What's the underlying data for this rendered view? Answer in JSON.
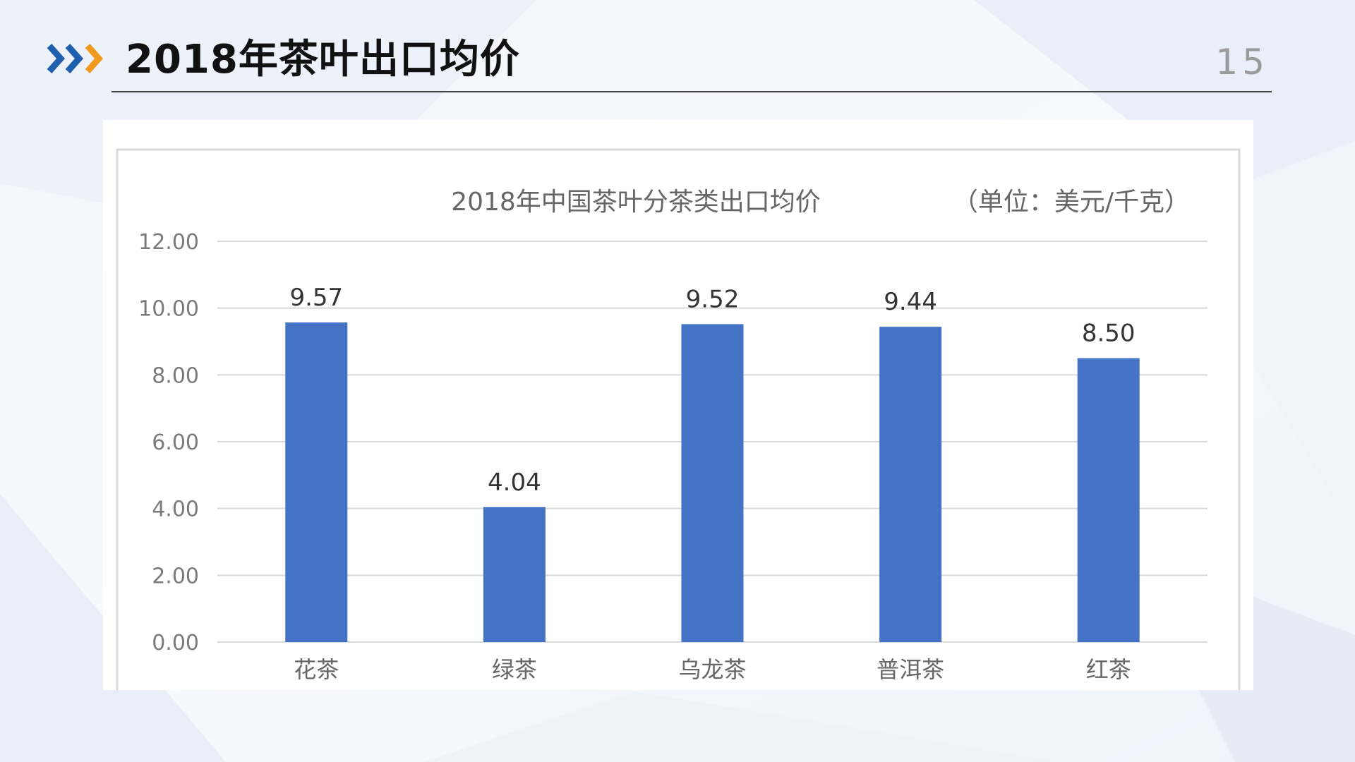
{
  "slide": {
    "title": "2018年茶叶出口均价",
    "page_number": "15"
  },
  "colors": {
    "chevron_blue": "#1f5fae",
    "chevron_orange": "#f29a1f",
    "bar": "#4472c4",
    "grid": "#d9d9d9"
  },
  "chart_data": {
    "type": "bar",
    "title": "2018年中国茶叶分茶类出口均价",
    "unit_label": "（单位：美元/千克）",
    "categories": [
      "花茶",
      "绿茶",
      "乌龙茶",
      "普洱茶",
      "红茶"
    ],
    "values": [
      9.57,
      4.04,
      9.52,
      9.44,
      8.5
    ],
    "data_labels": [
      "9.57",
      "4.04",
      "9.52",
      "9.44",
      "8.50"
    ],
    "ylim": [
      0,
      12
    ],
    "y_ticks": [
      0,
      2,
      4,
      6,
      8,
      10,
      12
    ],
    "y_tick_labels": [
      "0.00",
      "2.00",
      "4.00",
      "6.00",
      "8.00",
      "10.00",
      "12.00"
    ],
    "grid": true,
    "legend": "none",
    "xlabel": "",
    "ylabel": ""
  }
}
